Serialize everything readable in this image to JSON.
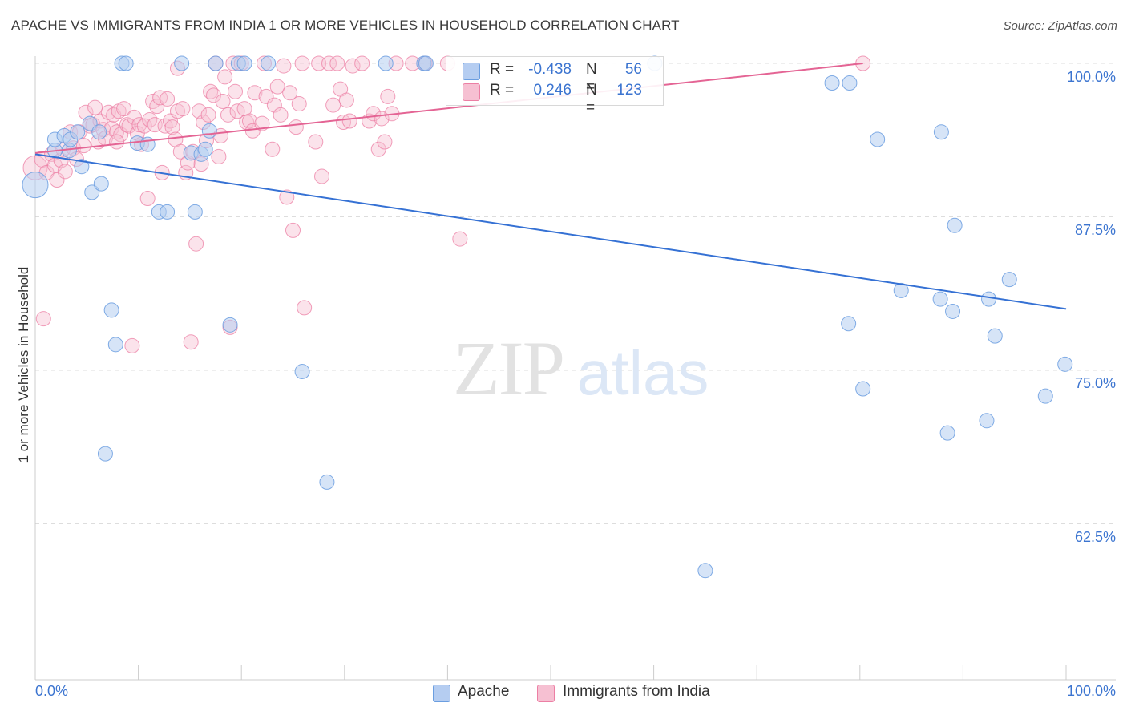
{
  "title": "APACHE VS IMMIGRANTS FROM INDIA 1 OR MORE VEHICLES IN HOUSEHOLD CORRELATION CHART",
  "source": "Source: ZipAtlas.com",
  "watermark": {
    "zip": "ZIP",
    "atlas": "atlas"
  },
  "colors": {
    "apache": "#6b9ee0",
    "apache_fill": "#b5cdf1",
    "india": "#ec7fa4",
    "india_fill": "#f6c0d2",
    "apache_line": "#3571d4",
    "india_line": "#e46494",
    "accent_text": "#3b74d0"
  },
  "legend": {
    "rows": [
      {
        "r_label": "R =",
        "r_value": "-0.438",
        "n_label": "N =",
        "n_value": "56"
      },
      {
        "r_label": "R =",
        "r_value": "0.246",
        "n_label": "N =",
        "n_value": "123"
      }
    ]
  },
  "bottom_legend": [
    "Apache",
    "Immigrants from India"
  ],
  "chart_data": {
    "type": "scatter",
    "title": "APACHE VS IMMIGRANTS FROM INDIA 1 OR MORE VEHICLES IN HOUSEHOLD CORRELATION CHART",
    "xlabel": "",
    "ylabel": "1 or more Vehicles in Household",
    "x_tick_labels": [
      "0.0%",
      "100.0%"
    ],
    "y_tick_labels": [
      "100.0%",
      "87.5%",
      "75.0%",
      "62.5%"
    ],
    "y_ticks": [
      100,
      87.5,
      75,
      62.5
    ],
    "xlim": [
      0,
      100
    ],
    "ylim": [
      48.1,
      100.3
    ],
    "series": [
      {
        "name": "Apache",
        "R": -0.438,
        "N": 56,
        "trend": {
          "x": [
            0,
            100
          ],
          "y": [
            92.6,
            80.0
          ]
        },
        "points": [
          [
            0.0,
            90.1,
            28
          ],
          [
            1.9,
            92.9,
            14
          ],
          [
            1.9,
            93.8,
            14
          ],
          [
            2.8,
            94.1,
            14
          ],
          [
            3.3,
            92.9,
            14
          ],
          [
            3.4,
            93.8,
            14
          ],
          [
            4.1,
            94.4,
            14
          ],
          [
            4.5,
            91.6,
            14
          ],
          [
            5.3,
            95.1,
            14
          ],
          [
            5.5,
            89.5,
            14
          ],
          [
            6.2,
            94.4,
            14
          ],
          [
            6.4,
            90.2,
            14
          ],
          [
            6.8,
            68.2,
            14
          ],
          [
            7.4,
            79.9,
            14
          ],
          [
            7.8,
            77.1,
            14
          ],
          [
            8.4,
            100.0,
            14
          ],
          [
            8.8,
            100.0,
            14
          ],
          [
            9.9,
            93.5,
            14
          ],
          [
            10.9,
            93.4,
            14
          ],
          [
            12.0,
            87.9,
            14
          ],
          [
            12.8,
            87.9,
            14
          ],
          [
            14.2,
            100.0,
            14
          ],
          [
            15.1,
            92.7,
            14
          ],
          [
            15.5,
            87.9,
            14
          ],
          [
            16.1,
            92.6,
            14
          ],
          [
            16.5,
            93.0,
            14
          ],
          [
            16.9,
            94.5,
            14
          ],
          [
            17.5,
            100.0,
            14
          ],
          [
            18.9,
            78.7,
            14
          ],
          [
            19.7,
            100.0,
            14
          ],
          [
            20.3,
            100.0,
            14
          ],
          [
            22.6,
            100.0,
            14
          ],
          [
            25.9,
            74.9,
            14
          ],
          [
            28.3,
            65.9,
            14
          ],
          [
            34.0,
            100.0,
            14
          ],
          [
            37.7,
            100.0,
            14
          ],
          [
            37.9,
            100.0,
            14
          ],
          [
            65.0,
            58.7,
            14
          ],
          [
            77.3,
            98.4,
            14
          ],
          [
            79.0,
            98.4,
            14
          ],
          [
            78.9,
            78.8,
            14
          ],
          [
            80.3,
            73.5,
            14
          ],
          [
            81.7,
            93.8,
            14
          ],
          [
            84.0,
            81.5,
            14
          ],
          [
            87.8,
            80.8,
            14
          ],
          [
            87.9,
            94.4,
            14
          ],
          [
            88.5,
            69.9,
            14
          ],
          [
            89.0,
            79.8,
            14
          ],
          [
            89.2,
            86.8,
            14
          ],
          [
            92.3,
            70.9,
            14
          ],
          [
            92.5,
            80.8,
            14
          ],
          [
            93.1,
            77.8,
            14
          ],
          [
            94.5,
            82.4,
            14
          ],
          [
            98.0,
            72.9,
            14
          ],
          [
            99.9,
            75.5,
            14
          ],
          [
            60.1,
            100.0,
            14
          ]
        ]
      },
      {
        "name": "Immigrants from India",
        "R": 0.246,
        "N": 123,
        "trend": {
          "x": [
            0,
            80.3
          ],
          "y": [
            92.7,
            100.0
          ]
        },
        "points": [
          [
            0.0,
            91.5,
            26
          ],
          [
            0.7,
            92.2,
            16
          ],
          [
            0.8,
            79.2,
            14
          ],
          [
            1.1,
            91.1,
            14
          ],
          [
            1.6,
            92.6,
            14
          ],
          [
            1.9,
            91.7,
            14
          ],
          [
            2.1,
            90.5,
            14
          ],
          [
            2.5,
            92.1,
            14
          ],
          [
            2.7,
            93.0,
            14
          ],
          [
            2.9,
            91.2,
            14
          ],
          [
            3.4,
            94.4,
            14
          ],
          [
            3.7,
            93.1,
            14
          ],
          [
            4.0,
            92.2,
            14
          ],
          [
            4.3,
            94.4,
            14
          ],
          [
            4.7,
            93.3,
            14
          ],
          [
            4.9,
            96.0,
            14
          ],
          [
            5.3,
            94.9,
            14
          ],
          [
            5.6,
            95.0,
            14
          ],
          [
            5.8,
            96.4,
            14
          ],
          [
            6.1,
            93.6,
            14
          ],
          [
            6.3,
            95.3,
            14
          ],
          [
            6.6,
            94.6,
            14
          ],
          [
            6.8,
            93.9,
            14
          ],
          [
            7.1,
            96.0,
            14
          ],
          [
            7.4,
            94.7,
            14
          ],
          [
            7.6,
            95.8,
            14
          ],
          [
            7.9,
            94.4,
            14
          ],
          [
            8.1,
            96.1,
            14
          ],
          [
            8.3,
            94.2,
            14
          ],
          [
            8.6,
            96.3,
            14
          ],
          [
            8.9,
            95.0,
            14
          ],
          [
            9.1,
            94.9,
            14
          ],
          [
            9.4,
            77.0,
            14
          ],
          [
            9.6,
            95.6,
            14
          ],
          [
            9.9,
            94.3,
            14
          ],
          [
            10.1,
            95.0,
            14
          ],
          [
            10.3,
            93.4,
            14
          ],
          [
            10.6,
            94.9,
            14
          ],
          [
            10.9,
            89.0,
            14
          ],
          [
            11.1,
            95.4,
            14
          ],
          [
            11.4,
            96.9,
            14
          ],
          [
            11.6,
            95.0,
            14
          ],
          [
            11.8,
            96.5,
            14
          ],
          [
            12.1,
            97.2,
            14
          ],
          [
            12.3,
            91.1,
            14
          ],
          [
            12.6,
            94.9,
            14
          ],
          [
            12.8,
            97.1,
            14
          ],
          [
            13.1,
            95.3,
            14
          ],
          [
            13.3,
            94.8,
            14
          ],
          [
            13.6,
            93.8,
            14
          ],
          [
            13.8,
            96.1,
            14
          ],
          [
            14.1,
            92.8,
            14
          ],
          [
            14.3,
            96.3,
            14
          ],
          [
            14.6,
            91.1,
            14
          ],
          [
            14.8,
            91.9,
            14
          ],
          [
            15.1,
            77.3,
            14
          ],
          [
            15.3,
            92.8,
            14
          ],
          [
            15.6,
            85.3,
            14
          ],
          [
            15.9,
            96.1,
            14
          ],
          [
            16.1,
            91.8,
            14
          ],
          [
            16.3,
            95.2,
            14
          ],
          [
            16.6,
            93.7,
            14
          ],
          [
            16.8,
            95.8,
            14
          ],
          [
            17.0,
            97.7,
            14
          ],
          [
            17.3,
            97.4,
            14
          ],
          [
            17.5,
            100.0,
            14
          ],
          [
            17.8,
            92.4,
            14
          ],
          [
            18.0,
            94.1,
            14
          ],
          [
            18.2,
            96.9,
            14
          ],
          [
            18.4,
            98.9,
            14
          ],
          [
            18.7,
            95.8,
            14
          ],
          [
            18.9,
            78.5,
            14
          ],
          [
            19.2,
            100.0,
            14
          ],
          [
            19.4,
            97.7,
            14
          ],
          [
            19.6,
            96.1,
            14
          ],
          [
            20.0,
            100.0,
            14
          ],
          [
            20.3,
            96.3,
            14
          ],
          [
            20.5,
            95.2,
            14
          ],
          [
            20.8,
            95.3,
            14
          ],
          [
            21.1,
            94.5,
            14
          ],
          [
            21.3,
            97.6,
            14
          ],
          [
            22.0,
            95.1,
            14
          ],
          [
            22.2,
            100.0,
            14
          ],
          [
            22.4,
            97.3,
            14
          ],
          [
            23.0,
            93.0,
            14
          ],
          [
            23.2,
            96.6,
            14
          ],
          [
            23.5,
            98.1,
            14
          ],
          [
            23.8,
            95.8,
            14
          ],
          [
            24.1,
            99.8,
            14
          ],
          [
            24.4,
            89.1,
            14
          ],
          [
            24.7,
            97.6,
            14
          ],
          [
            25.0,
            86.4,
            14
          ],
          [
            25.3,
            94.8,
            14
          ],
          [
            25.6,
            96.7,
            14
          ],
          [
            25.9,
            100.0,
            14
          ],
          [
            26.1,
            80.1,
            14
          ],
          [
            27.2,
            93.6,
            14
          ],
          [
            27.5,
            100.0,
            14
          ],
          [
            27.8,
            90.8,
            14
          ],
          [
            28.5,
            100.0,
            14
          ],
          [
            28.9,
            96.6,
            14
          ],
          [
            29.3,
            100.0,
            14
          ],
          [
            29.6,
            97.9,
            14
          ],
          [
            29.9,
            95.2,
            14
          ],
          [
            30.2,
            97.0,
            14
          ],
          [
            30.5,
            95.3,
            14
          ],
          [
            30.8,
            99.8,
            14
          ],
          [
            31.7,
            100.0,
            14
          ],
          [
            32.4,
            95.3,
            14
          ],
          [
            32.8,
            95.9,
            14
          ],
          [
            33.3,
            93.0,
            14
          ],
          [
            33.6,
            95.5,
            14
          ],
          [
            33.9,
            93.6,
            14
          ],
          [
            34.2,
            97.3,
            14
          ],
          [
            34.6,
            95.9,
            14
          ],
          [
            35.0,
            100.0,
            14
          ],
          [
            36.6,
            100.0,
            14
          ],
          [
            37.8,
            100.0,
            14
          ],
          [
            40.0,
            100.0,
            14
          ],
          [
            41.2,
            85.7,
            14
          ],
          [
            80.3,
            100.0,
            14
          ],
          [
            13.8,
            99.6,
            14
          ],
          [
            7.9,
            93.6,
            14
          ]
        ]
      }
    ]
  }
}
